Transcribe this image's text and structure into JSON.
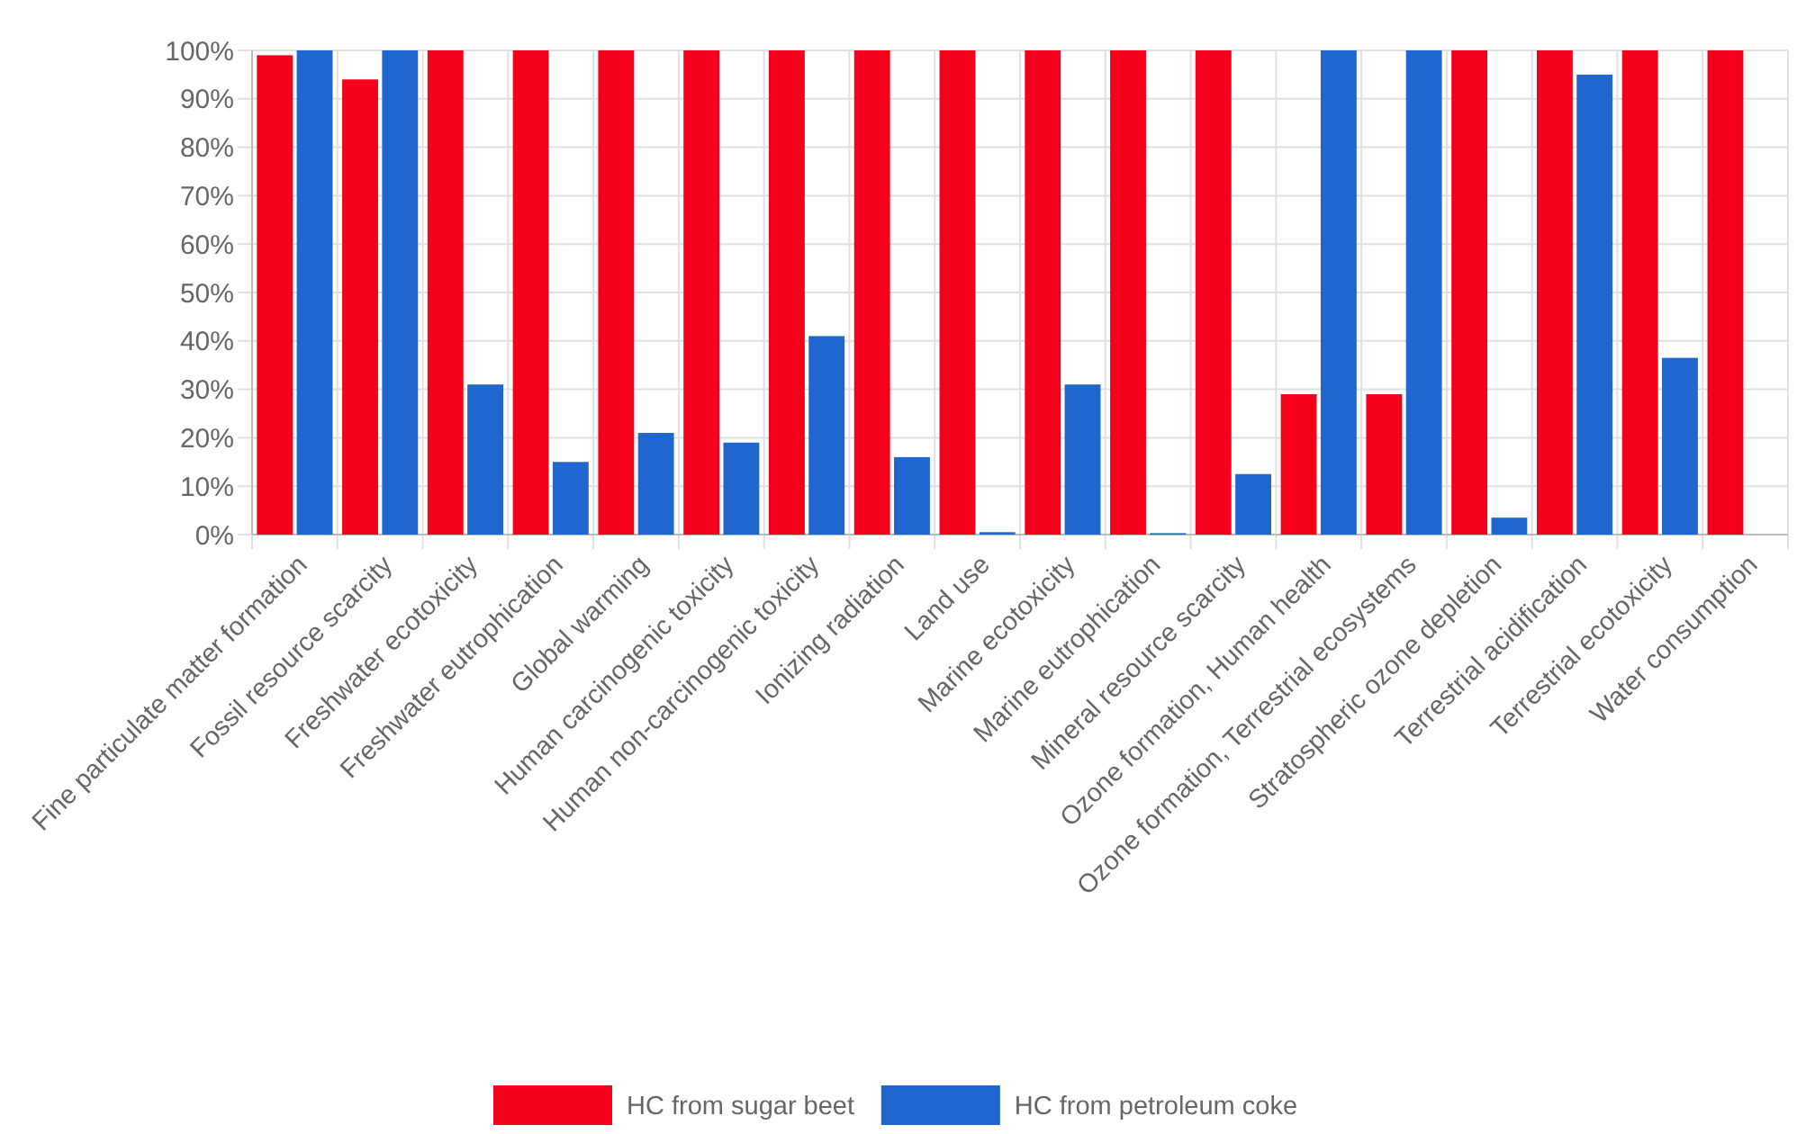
{
  "chart_data": {
    "type": "bar",
    "categories": [
      "Fine particulate matter formation",
      "Fossil resource scarcity",
      "Freshwater ecotoxicity",
      "Freshwater eutrophication",
      "Global warming",
      "Human carcinogenic toxicity",
      "Human non-carcinogenic toxicity",
      "Ionizing radiation",
      "Land use",
      "Marine ecotoxicity",
      "Marine eutrophication",
      "Mineral resource scarcity",
      "Ozone formation, Human health",
      "Ozone formation, Terrestrial ecosystems",
      "Stratospheric ozone depletion",
      "Terrestrial acidification",
      "Terrestrial ecotoxicity",
      "Water consumption"
    ],
    "series": [
      {
        "name": "HC from sugar beet",
        "color": "#f5001c",
        "values": [
          99,
          94,
          100,
          100,
          100,
          100,
          100,
          100,
          100,
          100,
          100,
          100,
          29,
          29,
          100,
          100,
          100,
          100
        ]
      },
      {
        "name": "HC from petroleum coke",
        "color": "#1f66cf",
        "values": [
          100,
          100,
          31,
          15,
          21,
          19,
          41,
          16,
          0.5,
          31,
          0.3,
          12.5,
          100,
          100,
          3.5,
          95,
          36.5,
          0
        ]
      }
    ],
    "ylim": [
      0,
      100
    ],
    "yticks": [
      {
        "value": 0,
        "label": "0%"
      },
      {
        "value": 10,
        "label": "10%"
      },
      {
        "value": 20,
        "label": "20%"
      },
      {
        "value": 30,
        "label": "30%"
      },
      {
        "value": 40,
        "label": "40%"
      },
      {
        "value": 50,
        "label": "50%"
      },
      {
        "value": 60,
        "label": "60%"
      },
      {
        "value": 70,
        "label": "70%"
      },
      {
        "value": 80,
        "label": "80%"
      },
      {
        "value": 90,
        "label": "90%"
      },
      {
        "value": 100,
        "label": "100%"
      }
    ],
    "grid": true,
    "legend": "bottom"
  }
}
